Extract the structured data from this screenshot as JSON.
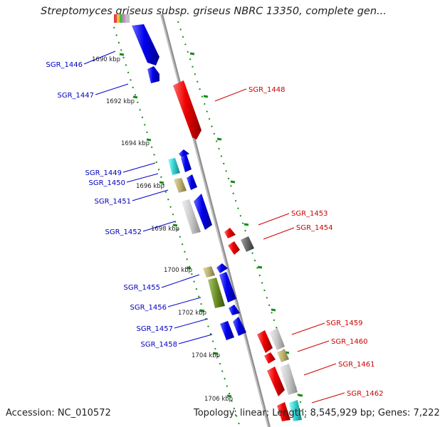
{
  "title": "Streptomyces griseus subsp. griseus NBRC 13350, complete gen...",
  "accession": "Accession: NC_010572",
  "topology": "Topology: linear; Length: 8,545,929 bp; Genes: 7,222",
  "colors": {
    "forward_gene": "#0000ee",
    "reverse_gene": "#ee0000",
    "cyan_gene": "#33cccc",
    "khaki_gene": "#bbb070",
    "olive_gene": "#6b8e23",
    "light_gray_gene": "#c8c8c8",
    "dark_gray_gene": "#666666",
    "tick": "#1a8a1a",
    "axis": "#888888"
  },
  "kbp_labels": [
    "1690 kbp",
    "1692 kbp",
    "1694 kbp",
    "1696 kbp",
    "1698 kbp",
    "1700 kbp",
    "1702 kbp",
    "1704 kbp",
    "1706 kbp"
  ],
  "left_genes": [
    "SGR_1446",
    "SGR_1447",
    "SGR_1449",
    "SGR_1450",
    "SGR_1451",
    "SGR_1452",
    "SGR_1455",
    "SGR_1456",
    "SGR_1457",
    "SGR_1458"
  ],
  "right_genes": [
    "SGR_1448",
    "SGR_1453",
    "SGR_1454",
    "SGR_1459",
    "SGR_1460",
    "SGR_1461",
    "SGR_1462"
  ]
}
